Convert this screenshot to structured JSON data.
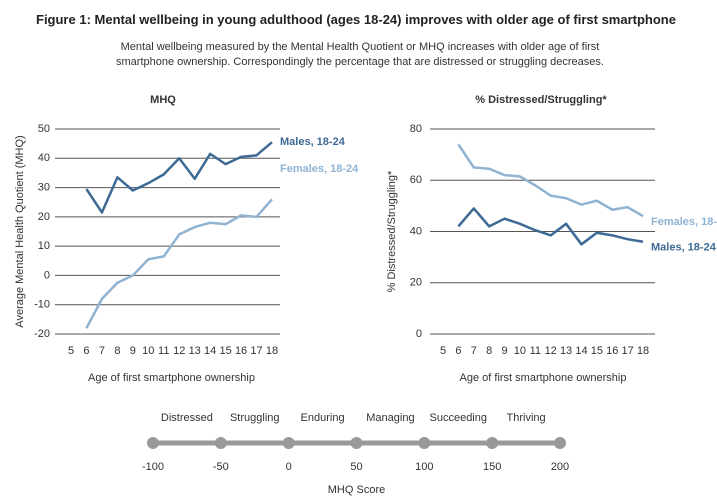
{
  "title": "Figure 1:  Mental wellbeing in young adulthood (ages 18-24) improves with older age of first smartphone",
  "subtitle": "Mental wellbeing measured by the Mental Health Quotient or MHQ increases with older age of first smartphone ownership. Correspondingly the percentage that are distressed or struggling decreases.",
  "chart_data": [
    {
      "type": "line",
      "title": "MHQ",
      "xlabel": "Age of first smartphone ownership",
      "ylabel": "Average Mental Health Quotient (MHQ)",
      "x": [
        6,
        7,
        8,
        9,
        10,
        11,
        12,
        13,
        14,
        15,
        16,
        17,
        18
      ],
      "xlim": [
        5,
        18
      ],
      "xticks": [
        5,
        6,
        7,
        8,
        9,
        10,
        11,
        12,
        13,
        14,
        15,
        16,
        17,
        18
      ],
      "ylim": [
        -20,
        50
      ],
      "yticks": [
        -20,
        -10,
        0,
        10,
        20,
        30,
        40,
        50
      ],
      "grid": true,
      "series": [
        {
          "name": "Males, 18-24",
          "color": "#3d6a94",
          "values": [
            29.5,
            21.5,
            33.5,
            29,
            31.5,
            34.5,
            40,
            33,
            41.5,
            38,
            40.5,
            41,
            45.5
          ]
        },
        {
          "name": "Females, 18-24",
          "color": "#8fb3d3",
          "values": [
            -18,
            -8,
            -2.5,
            0,
            5.5,
            6.5,
            14,
            16.5,
            18,
            17.5,
            20.5,
            20,
            26
          ]
        }
      ]
    },
    {
      "type": "line",
      "title": "% Distressed/Struggling*",
      "xlabel": "Age of first smartphone ownership",
      "ylabel": "% Distressed/Struggling*",
      "x": [
        6,
        7,
        8,
        9,
        10,
        11,
        12,
        13,
        14,
        15,
        16,
        17,
        18
      ],
      "xlim": [
        5,
        18
      ],
      "xticks": [
        5,
        6,
        7,
        8,
        9,
        10,
        11,
        12,
        13,
        14,
        15,
        16,
        17,
        18
      ],
      "ylim": [
        0,
        80
      ],
      "yticks": [
        0,
        20,
        40,
        60,
        80
      ],
      "grid": true,
      "series": [
        {
          "name": "Females, 18-24",
          "color": "#8fb3d3",
          "values": [
            74,
            65,
            64.5,
            62,
            61.5,
            58,
            54,
            53,
            50.5,
            52,
            48.5,
            49.5,
            46
          ]
        },
        {
          "name": "Males, 18-24",
          "color": "#3d6a94",
          "values": [
            42,
            49,
            42,
            45,
            43,
            40.5,
            38.5,
            43,
            35,
            39.5,
            38.5,
            37,
            36
          ]
        }
      ]
    }
  ],
  "scale": {
    "labels": [
      "Distressed",
      "Struggling",
      "Enduring",
      "Managing",
      "Succeeding",
      "Thriving"
    ],
    "ticks": [
      -100,
      -50,
      0,
      50,
      100,
      150,
      200
    ],
    "xlabel": "MHQ Score"
  }
}
